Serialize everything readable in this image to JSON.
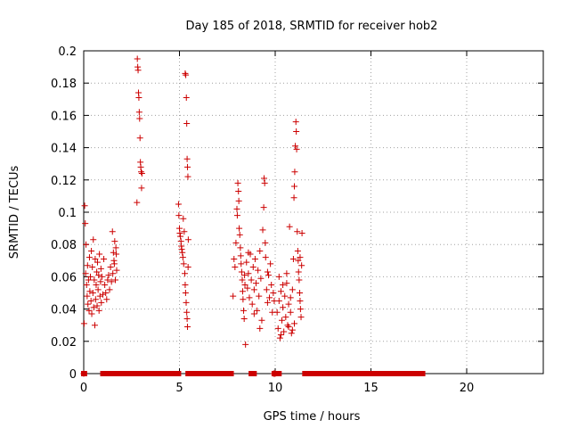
{
  "chart_data": {
    "type": "scatter",
    "title": "Day 185 of 2018, SRMTID for receiver hob2",
    "xlabel": "GPS time / hours",
    "ylabel": "SRMTID / TECUs",
    "xlim": [
      0,
      24
    ],
    "ylim": [
      0,
      0.2
    ],
    "x_ticks": [
      0,
      5,
      10,
      15,
      20
    ],
    "x_tick_labels": [
      "0",
      "5",
      "10",
      "15",
      "20"
    ],
    "y_ticks": [
      0,
      0.02,
      0.04,
      0.06,
      0.08,
      0.1,
      0.12,
      0.14,
      0.16,
      0.18,
      0.2
    ],
    "y_tick_labels": [
      "0",
      "0.02",
      "0.04",
      "0.06",
      "0.08",
      "0.1",
      "0.12",
      "0.14",
      "0.16",
      "0.18",
      "0.2"
    ],
    "grid": true,
    "marker": "+",
    "series": [
      {
        "name": "SRMTID",
        "color": "#cc0000",
        "points": [
          [
            0.0,
            0.0
          ],
          [
            0.02,
            0.031
          ],
          [
            0.05,
            0.104
          ],
          [
            0.08,
            0.093
          ],
          [
            0.1,
            0.062
          ],
          [
            0.12,
            0.08
          ],
          [
            0.15,
            0.055
          ],
          [
            0.18,
            0.048
          ],
          [
            0.2,
            0.067
          ],
          [
            0.22,
            0.043
          ],
          [
            0.25,
            0.058
          ],
          [
            0.28,
            0.039
          ],
          [
            0.3,
            0.072
          ],
          [
            0.32,
            0.051
          ],
          [
            0.35,
            0.06
          ],
          [
            0.38,
            0.045
          ],
          [
            0.4,
            0.076
          ],
          [
            0.42,
            0.037
          ],
          [
            0.45,
            0.066
          ],
          [
            0.48,
            0.05
          ],
          [
            0.5,
            0.083
          ],
          [
            0.52,
            0.041
          ],
          [
            0.55,
            0.058
          ],
          [
            0.58,
            0.03
          ],
          [
            0.6,
            0.071
          ],
          [
            0.62,
            0.046
          ],
          [
            0.65,
            0.055
          ],
          [
            0.68,
            0.063
          ],
          [
            0.7,
            0.042
          ],
          [
            0.72,
            0.069
          ],
          [
            0.75,
            0.052
          ],
          [
            0.78,
            0.061
          ],
          [
            0.8,
            0.039
          ],
          [
            0.82,
            0.074
          ],
          [
            0.85,
            0.048
          ],
          [
            0.88,
            0.057
          ],
          [
            0.9,
            0.065
          ],
          [
            0.92,
            0.044
          ],
          [
            0.95,
            0.06
          ],
          [
            1.0,
            0.049
          ],
          [
            1.05,
            0.071
          ],
          [
            1.1,
            0.055
          ],
          [
            1.15,
            0.05
          ],
          [
            1.2,
            0.046
          ],
          [
            1.25,
            0.058
          ],
          [
            1.3,
            0.061
          ],
          [
            1.35,
            0.052
          ],
          [
            1.4,
            0.066
          ],
          [
            1.45,
            0.057
          ],
          [
            1.5,
            0.088
          ],
          [
            1.52,
            0.062
          ],
          [
            1.55,
            0.075
          ],
          [
            1.58,
            0.07
          ],
          [
            1.6,
            0.068
          ],
          [
            1.62,
            0.082
          ],
          [
            1.65,
            0.058
          ],
          [
            1.68,
            0.078
          ],
          [
            1.7,
            0.074
          ],
          [
            1.72,
            0.064
          ],
          [
            2.78,
            0.106
          ],
          [
            2.8,
            0.195
          ],
          [
            2.82,
            0.19
          ],
          [
            2.84,
            0.188
          ],
          [
            2.86,
            0.174
          ],
          [
            2.88,
            0.171
          ],
          [
            2.9,
            0.162
          ],
          [
            2.92,
            0.158
          ],
          [
            2.94,
            0.146
          ],
          [
            2.96,
            0.131
          ],
          [
            2.98,
            0.128
          ],
          [
            3.0,
            0.125
          ],
          [
            3.02,
            0.115
          ],
          [
            3.04,
            0.124
          ],
          [
            4.95,
            0.105
          ],
          [
            4.97,
            0.098
          ],
          [
            5.0,
            0.09
          ],
          [
            5.02,
            0.087
          ],
          [
            5.05,
            0.085
          ],
          [
            5.08,
            0.082
          ],
          [
            5.1,
            0.079
          ],
          [
            5.12,
            0.077
          ],
          [
            5.15,
            0.075
          ],
          [
            5.18,
            0.072
          ],
          [
            5.2,
            0.096
          ],
          [
            5.22,
            0.068
          ],
          [
            5.25,
            0.088
          ],
          [
            5.28,
            0.062
          ],
          [
            5.3,
            0.055
          ],
          [
            5.32,
            0.05
          ],
          [
            5.35,
            0.044
          ],
          [
            5.38,
            0.038
          ],
          [
            5.4,
            0.034
          ],
          [
            5.42,
            0.029
          ],
          [
            5.45,
            0.066
          ],
          [
            5.3,
            0.186
          ],
          [
            5.33,
            0.185
          ],
          [
            5.36,
            0.171
          ],
          [
            5.38,
            0.155
          ],
          [
            5.4,
            0.133
          ],
          [
            5.42,
            0.128
          ],
          [
            5.44,
            0.122
          ],
          [
            5.46,
            0.083
          ],
          [
            7.8,
            0.048
          ],
          [
            7.85,
            0.071
          ],
          [
            7.9,
            0.066
          ],
          [
            7.95,
            0.081
          ],
          [
            8.0,
            0.102
          ],
          [
            8.02,
            0.098
          ],
          [
            8.05,
            0.118
          ],
          [
            8.08,
            0.113
          ],
          [
            8.1,
            0.107
          ],
          [
            8.12,
            0.09
          ],
          [
            8.15,
            0.086
          ],
          [
            8.18,
            0.078
          ],
          [
            8.2,
            0.073
          ],
          [
            8.22,
            0.068
          ],
          [
            8.25,
            0.063
          ],
          [
            8.28,
            0.058
          ],
          [
            8.3,
            0.051
          ],
          [
            8.32,
            0.046
          ],
          [
            8.35,
            0.039
          ],
          [
            8.38,
            0.034
          ],
          [
            8.4,
            0.061
          ],
          [
            8.42,
            0.055
          ],
          [
            8.45,
            0.018
          ],
          [
            8.5,
            0.069
          ],
          [
            8.55,
            0.053
          ],
          [
            8.6,
            0.062
          ],
          [
            8.65,
            0.047
          ],
          [
            8.7,
            0.074
          ],
          [
            8.75,
            0.058
          ],
          [
            8.8,
            0.043
          ],
          [
            8.85,
            0.066
          ],
          [
            8.9,
            0.052
          ],
          [
            8.95,
            0.071
          ],
          [
            9.0,
            0.056
          ],
          [
            9.05,
            0.039
          ],
          [
            9.1,
            0.064
          ],
          [
            9.15,
            0.048
          ],
          [
            9.2,
            0.076
          ],
          [
            9.25,
            0.059
          ],
          [
            9.3,
            0.033
          ],
          [
            9.35,
            0.089
          ],
          [
            9.4,
            0.103
          ],
          [
            9.42,
            0.121
          ],
          [
            9.45,
            0.118
          ],
          [
            9.48,
            0.081
          ],
          [
            9.5,
            0.072
          ],
          [
            9.55,
            0.052
          ],
          [
            9.6,
            0.044
          ],
          [
            9.65,
            0.061
          ],
          [
            9.7,
            0.047
          ],
          [
            9.75,
            0.068
          ],
          [
            9.8,
            0.055
          ],
          [
            9.85,
            0.038
          ],
          [
            9.9,
            0.05
          ],
          [
            8.6,
            0.075
          ],
          [
            8.9,
            0.037
          ],
          [
            9.2,
            0.028
          ],
          [
            9.6,
            0.063
          ],
          [
            9.95,
            0.045
          ],
          [
            9.92,
            0.0
          ],
          [
            9.95,
            0.0
          ],
          [
            10.0,
            0.0
          ],
          [
            10.1,
            0.038
          ],
          [
            10.15,
            0.028
          ],
          [
            10.2,
            0.045
          ],
          [
            10.25,
            0.022
          ],
          [
            10.3,
            0.051
          ],
          [
            10.35,
            0.033
          ],
          [
            10.4,
            0.041
          ],
          [
            10.45,
            0.026
          ],
          [
            10.5,
            0.048
          ],
          [
            10.55,
            0.035
          ],
          [
            10.6,
            0.056
          ],
          [
            10.65,
            0.03
          ],
          [
            10.7,
            0.043
          ],
          [
            10.75,
            0.091
          ],
          [
            10.8,
            0.038
          ],
          [
            10.85,
            0.025
          ],
          [
            10.9,
            0.052
          ],
          [
            10.95,
            0.071
          ],
          [
            10.98,
            0.109
          ],
          [
            11.0,
            0.116
          ],
          [
            11.02,
            0.125
          ],
          [
            11.05,
            0.141
          ],
          [
            11.08,
            0.156
          ],
          [
            11.1,
            0.15
          ],
          [
            11.12,
            0.139
          ],
          [
            11.15,
            0.088
          ],
          [
            11.18,
            0.076
          ],
          [
            11.2,
            0.07
          ],
          [
            11.22,
            0.063
          ],
          [
            11.25,
            0.058
          ],
          [
            11.28,
            0.05
          ],
          [
            11.3,
            0.045
          ],
          [
            11.32,
            0.04
          ],
          [
            11.35,
            0.035
          ],
          [
            11.38,
            0.067
          ],
          [
            11.4,
            0.087
          ],
          [
            10.2,
            0.06
          ],
          [
            10.4,
            0.055
          ],
          [
            10.6,
            0.062
          ],
          [
            10.8,
            0.047
          ],
          [
            11.0,
            0.031
          ],
          [
            11.3,
            0.072
          ],
          [
            10.3,
            0.024
          ],
          [
            10.7,
            0.029
          ],
          [
            10.9,
            0.027
          ]
        ]
      }
    ],
    "zero_segments": [
      [
        0.0,
        0.04
      ],
      [
        1.0,
        1.3
      ],
      [
        1.4,
        1.55
      ],
      [
        1.8,
        4.95
      ],
      [
        5.45,
        7.7
      ],
      [
        8.75,
        8.9
      ],
      [
        9.95,
        10.2
      ],
      [
        11.55,
        13.3
      ],
      [
        13.3,
        17.7
      ]
    ]
  }
}
